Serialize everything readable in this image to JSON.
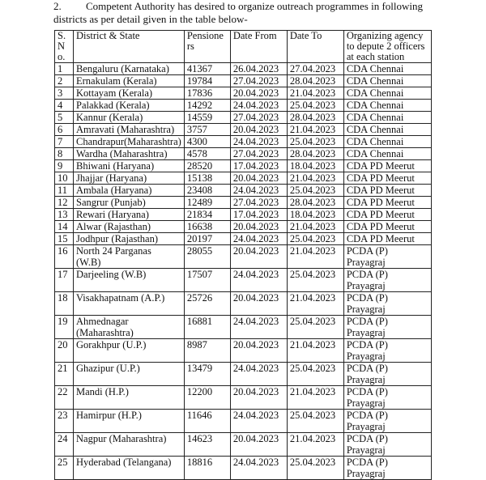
{
  "intro": {
    "number": "2.",
    "text": "Competent Authority has desired to organize outreach programmes in following districts as per detail given in the table below-"
  },
  "table": {
    "columns": [
      "S.\nN\no.",
      "District & State",
      "Pensione\nrs",
      "Date From",
      "Date To",
      "Organizing agency\nto depute 2 officers\nat each station"
    ],
    "rows": [
      [
        1,
        "Bengaluru (Karnataka)",
        41367,
        "26.04.2023",
        "27.04.2023",
        "CDA Chennai"
      ],
      [
        2,
        "Ernakulam (Kerala)",
        19784,
        "27.04.2023",
        "28.04.2023",
        "CDA Chennai"
      ],
      [
        3,
        "Kottayam (Kerala)",
        17836,
        "20.04.2023",
        "21.04.2023",
        "CDA Chennai"
      ],
      [
        4,
        "Palakkad (Kerala)",
        14292,
        "24.04.2023",
        "25.04.2023",
        "CDA Chennai"
      ],
      [
        5,
        "Kannur (Kerala)",
        14559,
        "27.04.2023",
        "28.04.2023",
        "CDA Chennai"
      ],
      [
        6,
        "Amravati (Maharashtra)",
        3757,
        "20.04.2023",
        "21.04.2023",
        "CDA Chennai"
      ],
      [
        7,
        "Chandrapur(Maharashtra)",
        4300,
        "24.04.2023",
        "25.04.2023",
        "CDA Chennai"
      ],
      [
        8,
        "Wardha (Maharashtra)",
        4578,
        "27.04.2023",
        "28.04.2023",
        "CDA Chennai"
      ],
      [
        9,
        "Bhiwani (Haryana)",
        28520,
        "17.04.2023",
        "18.04.2023",
        "CDA PD Meerut"
      ],
      [
        10,
        "Jhajjar (Haryana)",
        15138,
        "20.04.2023",
        "21.04.2023",
        "CDA PD Meerut"
      ],
      [
        11,
        "Ambala (Haryana)",
        23408,
        "24.04.2023",
        "25.04.2023",
        "CDA PD Meerut"
      ],
      [
        12,
        "Sangrur (Punjab)",
        12489,
        "27.04.2023",
        "28.04.2023",
        "CDA PD Meerut"
      ],
      [
        13,
        "Rewari (Haryana)",
        21834,
        "17.04.2023",
        "18.04.2023",
        "CDA PD Meerut"
      ],
      [
        14,
        "Alwar (Rajasthan)",
        16638,
        "20.04.2023",
        "21.04.2023",
        "CDA PD Meerut"
      ],
      [
        15,
        "Jodhpur (Rajasthan)",
        20197,
        "24.04.2023",
        "25.04.2023",
        "CDA PD Meerut"
      ],
      [
        16,
        "North 24 Parganas\n(W.B)",
        28055,
        "20.04.2023",
        "21.04.2023",
        "PCDA (P) Prayagraj"
      ],
      [
        17,
        "Darjeeling (W.B)",
        17507,
        "24.04.2023",
        "25.04.2023",
        "PCDA (P) Prayagraj"
      ],
      [
        18,
        "Visakhapatnam (A.P.)",
        25726,
        "20.04.2023",
        "21.04.2023",
        "PCDA (P) Prayagraj"
      ],
      [
        19,
        "Ahmednagar\n(Maharashtra)",
        16881,
        "24.04.2023",
        "25.04.2023",
        "PCDA (P) Prayagraj"
      ],
      [
        20,
        "Gorakhpur (U.P.)",
        8987,
        "20.04.2023",
        "21.04.2023",
        "PCDA (P) Prayagraj"
      ],
      [
        21,
        "Ghazipur (U.P.)",
        13479,
        "24.04.2023",
        "25.04.2023",
        "PCDA (P) Prayagraj"
      ],
      [
        22,
        "Mandi (H.P.)",
        12200,
        "20.04.2023",
        "21.04.2023",
        "PCDA (P) Prayagraj"
      ],
      [
        23,
        "Hamirpur (H.P.)",
        11646,
        "24.04.2023",
        "25.04.2023",
        "PCDA (P) Prayagraj"
      ],
      [
        24,
        "Nagpur (Maharashtra)",
        14623,
        "20.04.2023",
        "21.04.2023",
        "PCDA (P) Prayagraj"
      ],
      [
        25,
        "Hyderabad (Telangana)",
        18816,
        "24.04.2023",
        "25.04.2023",
        "PCDA (P) Prayagraj"
      ]
    ]
  }
}
